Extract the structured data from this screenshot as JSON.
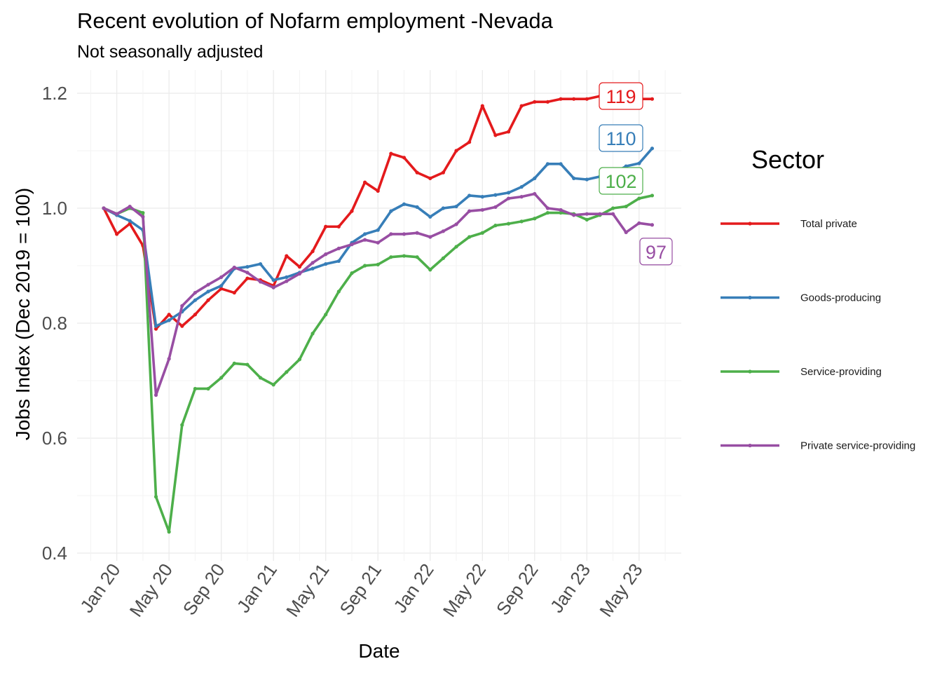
{
  "chart_data": {
    "type": "line",
    "title": "Recent evolution of Nofarm employment -Nevada",
    "subtitle": "Not seasonally adjusted",
    "xlabel": "Date",
    "ylabel": "Jobs Index (Dec 2019 = 100)",
    "ylim": [
      0.4,
      1.2
    ],
    "y_ticks": [
      "0.4",
      "0.6",
      "0.8",
      "1.0",
      "1.2"
    ],
    "y_tick_values": [
      0.4,
      0.6,
      0.8,
      1.0,
      1.2
    ],
    "x_ticks": [
      "Jan 20",
      "May 20",
      "Sep 20",
      "Jan 21",
      "May 21",
      "Sep 21",
      "Jan 22",
      "May 22",
      "Sep 22",
      "Jan 23",
      "May 23"
    ],
    "x_tick_months": [
      1,
      5,
      9,
      13,
      17,
      21,
      25,
      29,
      33,
      37,
      41
    ],
    "x_start_month": 0,
    "legend_title": "Sector",
    "legend_position": "right",
    "grid": true,
    "series": [
      {
        "name": "Total private",
        "color": "#e41a1c",
        "end_label": "119",
        "values": [
          1.0,
          0.955,
          0.973,
          0.935,
          0.79,
          0.815,
          0.795,
          0.815,
          0.84,
          0.86,
          0.853,
          0.878,
          0.875,
          0.865,
          0.917,
          0.898,
          0.925,
          0.968,
          0.968,
          0.995,
          1.045,
          1.03,
          1.095,
          1.088,
          1.062,
          1.052,
          1.062,
          1.1,
          1.115,
          1.178,
          1.127,
          1.133,
          1.178,
          1.185,
          1.185,
          1.19,
          1.19,
          1.19,
          1.195,
          1.19,
          1.19,
          1.19,
          1.19
        ]
      },
      {
        "name": "Goods-producing",
        "color": "#377eb8",
        "end_label": "110",
        "values": [
          1.0,
          0.988,
          0.978,
          0.962,
          0.795,
          0.805,
          0.82,
          0.84,
          0.855,
          0.865,
          0.895,
          0.898,
          0.903,
          0.875,
          0.88,
          0.888,
          0.895,
          0.903,
          0.908,
          0.94,
          0.955,
          0.962,
          0.995,
          1.007,
          1.002,
          0.985,
          1.0,
          1.003,
          1.022,
          1.02,
          1.023,
          1.027,
          1.037,
          1.052,
          1.077,
          1.077,
          1.052,
          1.05,
          1.055,
          1.06,
          1.073,
          1.078,
          1.104
        ]
      },
      {
        "name": "Service-providing",
        "color": "#4daf4a",
        "end_label": "102",
        "values": [
          1.0,
          0.99,
          1.0,
          0.992,
          0.498,
          0.437,
          0.623,
          0.686,
          0.686,
          0.705,
          0.73,
          0.728,
          0.705,
          0.693,
          0.715,
          0.737,
          0.782,
          0.815,
          0.855,
          0.887,
          0.9,
          0.902,
          0.915,
          0.917,
          0.915,
          0.893,
          0.913,
          0.933,
          0.95,
          0.957,
          0.97,
          0.973,
          0.977,
          0.982,
          0.992,
          0.992,
          0.99,
          0.98,
          0.988,
          1.0,
          1.003,
          1.017,
          1.022
        ]
      },
      {
        "name": "Private service-providing",
        "color": "#984ea3",
        "end_label": "97",
        "values": [
          1.0,
          0.99,
          1.003,
          0.985,
          0.675,
          0.738,
          0.83,
          0.853,
          0.867,
          0.88,
          0.897,
          0.888,
          0.872,
          0.862,
          0.873,
          0.886,
          0.905,
          0.92,
          0.93,
          0.937,
          0.945,
          0.94,
          0.955,
          0.955,
          0.957,
          0.95,
          0.96,
          0.972,
          0.995,
          0.997,
          1.002,
          1.017,
          1.02,
          1.025,
          1.0,
          0.997,
          0.988,
          0.99,
          0.99,
          0.99,
          0.958,
          0.974,
          0.971
        ]
      }
    ]
  }
}
